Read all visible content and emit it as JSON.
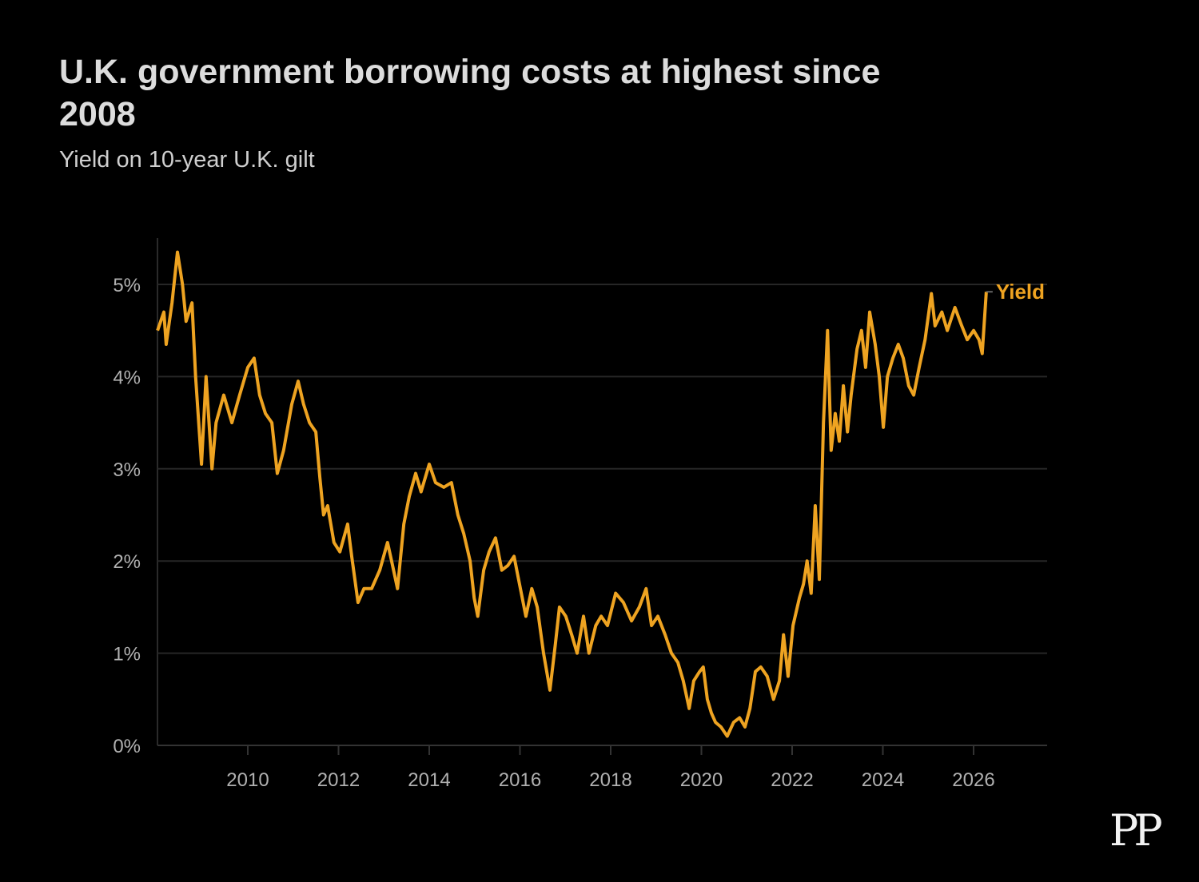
{
  "chart_data": {
    "type": "line",
    "title": "U.K. government borrowing costs at highest since 2008",
    "subtitle": "Yield on 10-year U.K. gilt",
    "xlabel": "",
    "ylabel": "",
    "xlim": [
      2008.0,
      2027.6
    ],
    "ylim": [
      0,
      5.5
    ],
    "x_ticks": [
      2010,
      2012,
      2014,
      2016,
      2018,
      2020,
      2022,
      2024,
      2026
    ],
    "x_tick_labels": [
      "2010",
      "2012",
      "2014",
      "2016",
      "2018",
      "2020",
      "2022",
      "2024",
      "2026"
    ],
    "y_ticks": [
      0,
      1,
      2,
      3,
      4,
      5
    ],
    "y_tick_labels": [
      "0%",
      "1%",
      "2%",
      "3%",
      "4%",
      "5%"
    ],
    "grid": "horizontal",
    "line_color": "#eea321",
    "series": [
      {
        "name": "Yield",
        "x": [
          2008.01,
          2008.15,
          2008.2,
          2008.33,
          2008.45,
          2008.56,
          2008.64,
          2008.77,
          2008.85,
          2008.98,
          2009.08,
          2009.21,
          2009.3,
          2009.47,
          2009.65,
          2009.82,
          2010.0,
          2010.14,
          2010.26,
          2010.39,
          2010.53,
          2010.65,
          2010.79,
          2010.97,
          2011.11,
          2011.23,
          2011.36,
          2011.5,
          2011.59,
          2011.67,
          2011.76,
          2011.9,
          2012.03,
          2012.2,
          2012.29,
          2012.43,
          2012.56,
          2012.73,
          2012.91,
          2013.08,
          2013.17,
          2013.3,
          2013.44,
          2013.56,
          2013.7,
          2013.82,
          2014.0,
          2014.14,
          2014.32,
          2014.49,
          2014.63,
          2014.76,
          2014.9,
          2014.99,
          2015.07,
          2015.2,
          2015.32,
          2015.46,
          2015.6,
          2015.73,
          2015.87,
          2015.99,
          2016.13,
          2016.26,
          2016.38,
          2016.52,
          2016.66,
          2016.78,
          2016.87,
          2017.01,
          2017.14,
          2017.26,
          2017.4,
          2017.52,
          2017.67,
          2017.79,
          2017.93,
          2018.11,
          2018.28,
          2018.46,
          2018.63,
          2018.78,
          2018.9,
          2019.04,
          2019.2,
          2019.34,
          2019.48,
          2019.6,
          2019.73,
          2019.83,
          2019.96,
          2020.04,
          2020.13,
          2020.22,
          2020.31,
          2020.43,
          2020.57,
          2020.71,
          2020.84,
          2020.96,
          2021.07,
          2021.19,
          2021.31,
          2021.45,
          2021.59,
          2021.72,
          2021.81,
          2021.91,
          2022.02,
          2022.16,
          2022.25,
          2022.33,
          2022.42,
          2022.51,
          2022.6,
          2022.69,
          2022.78,
          2022.86,
          2022.95,
          2023.04,
          2023.13,
          2023.22,
          2023.3,
          2023.43,
          2023.53,
          2023.62,
          2023.71,
          2023.83,
          2023.92,
          2024.01,
          2024.1,
          2024.22,
          2024.34,
          2024.45,
          2024.57,
          2024.68,
          2024.8,
          2024.93,
          2025.07,
          2025.15,
          2025.3,
          2025.42,
          2025.59,
          2025.74,
          2025.86,
          2026.0,
          2026.12,
          2026.19,
          2026.28
        ],
        "values": [
          4.5,
          4.7,
          4.35,
          4.8,
          5.35,
          5.0,
          4.6,
          4.8,
          4.0,
          3.05,
          4.0,
          3.0,
          3.5,
          3.8,
          3.5,
          3.8,
          4.1,
          4.2,
          3.8,
          3.6,
          3.5,
          2.95,
          3.2,
          3.7,
          3.95,
          3.7,
          3.5,
          3.4,
          2.9,
          2.5,
          2.6,
          2.2,
          2.1,
          2.4,
          2.05,
          1.55,
          1.7,
          1.7,
          1.9,
          2.2,
          2.0,
          1.7,
          2.4,
          2.7,
          2.95,
          2.75,
          3.05,
          2.85,
          2.8,
          2.85,
          2.5,
          2.3,
          2.0,
          1.6,
          1.4,
          1.9,
          2.1,
          2.25,
          1.9,
          1.95,
          2.05,
          1.75,
          1.4,
          1.7,
          1.5,
          1.0,
          0.6,
          1.1,
          1.5,
          1.4,
          1.2,
          1.0,
          1.4,
          1.0,
          1.3,
          1.4,
          1.3,
          1.65,
          1.55,
          1.35,
          1.5,
          1.7,
          1.3,
          1.4,
          1.2,
          1.0,
          0.9,
          0.7,
          0.4,
          0.7,
          0.8,
          0.85,
          0.5,
          0.35,
          0.25,
          0.2,
          0.1,
          0.25,
          0.3,
          0.2,
          0.4,
          0.8,
          0.85,
          0.75,
          0.5,
          0.7,
          1.2,
          0.75,
          1.3,
          1.6,
          1.75,
          2.0,
          1.65,
          2.6,
          1.8,
          3.5,
          4.5,
          3.2,
          3.6,
          3.3,
          3.9,
          3.4,
          3.8,
          4.3,
          4.5,
          4.1,
          4.7,
          4.35,
          4.0,
          3.45,
          4.0,
          4.2,
          4.35,
          4.2,
          3.9,
          3.8,
          4.1,
          4.4,
          4.9,
          4.55,
          4.7,
          4.5,
          4.75,
          4.55,
          4.4,
          4.5,
          4.4,
          4.25,
          4.92
        ]
      }
    ]
  },
  "logo_text": "PP"
}
